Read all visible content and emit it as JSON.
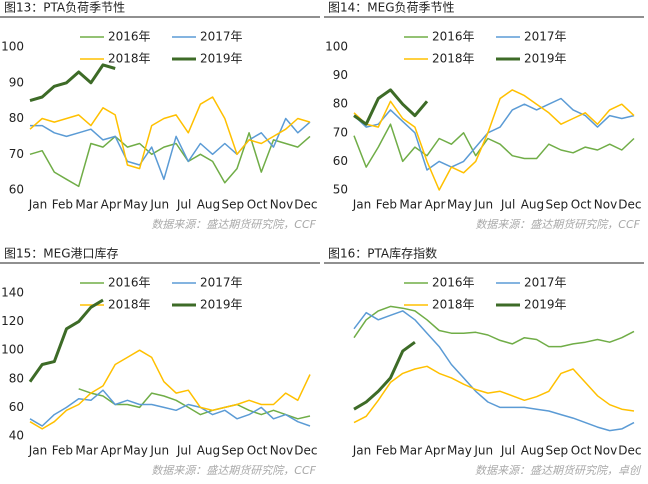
{
  "chart_data": [
    {
      "type": "line",
      "title": "图13：PTA负荷季节性",
      "source": "数据来源：盛达期货研究院，CCF",
      "categories": [
        "Jan",
        null,
        "Feb",
        null,
        "Mar",
        null,
        "Apr",
        null,
        "May",
        null,
        "Jun",
        null,
        "Jul",
        null,
        "Aug",
        null,
        "Sep",
        null,
        "Oct",
        null,
        "Nov",
        null,
        "Dec",
        null
      ],
      "ylim": [
        60,
        100
      ],
      "yticks": [
        60,
        70,
        80,
        90,
        100
      ],
      "series": [
        {
          "name": "2016年",
          "color": "#70ad47",
          "line_width": 1.5,
          "values": [
            70,
            71,
            65,
            63,
            61,
            73,
            72,
            75,
            72,
            73,
            70,
            72,
            73,
            68,
            70,
            68,
            62,
            66,
            76,
            65,
            74,
            73,
            72,
            75
          ]
        },
        {
          "name": "2017年",
          "color": "#5b9bd5",
          "line_width": 1.5,
          "values": [
            78,
            78,
            76,
            75,
            76,
            77,
            74,
            75,
            68,
            67,
            72,
            63,
            75,
            68,
            73,
            70,
            73,
            70,
            74,
            76,
            72,
            80,
            76,
            79
          ]
        },
        {
          "name": "2018年",
          "color": "#ffc000",
          "line_width": 1.5,
          "values": [
            77,
            80,
            79,
            80,
            81,
            78,
            83,
            81,
            67,
            66,
            78,
            80,
            81,
            76,
            84,
            86,
            80,
            70,
            74,
            73,
            75,
            77,
            80,
            79
          ]
        },
        {
          "name": "2019年",
          "color": "#3d6b27",
          "line_width": 3,
          "values": [
            85,
            86,
            89,
            90,
            93,
            90,
            95,
            94,
            null,
            null,
            null,
            null,
            null,
            null,
            null,
            null,
            null,
            null,
            null,
            null,
            null,
            null,
            null,
            null
          ]
        }
      ]
    },
    {
      "type": "line",
      "title": "图14：MEG负荷季节性",
      "source": "数据来源：盛达期货研究院，CCF",
      "categories": [
        "Jan",
        null,
        "Feb",
        null,
        "Mar",
        null,
        "Apr",
        null,
        "May",
        null,
        "Jun",
        null,
        "Jul",
        null,
        "Aug",
        null,
        "Sep",
        null,
        "Oct",
        null,
        "Nov",
        null,
        "Dec",
        null
      ],
      "ylim": [
        50,
        100
      ],
      "yticks": [
        50,
        60,
        70,
        80,
        90,
        100
      ],
      "series": [
        {
          "name": "2016年",
          "color": "#70ad47",
          "line_width": 1.5,
          "values": [
            69,
            58,
            65,
            73,
            60,
            65,
            62,
            68,
            66,
            70,
            62,
            68,
            66,
            62,
            61,
            61,
            66,
            64,
            63,
            65,
            64,
            66,
            64,
            68
          ]
        },
        {
          "name": "2017年",
          "color": "#5b9bd5",
          "line_width": 1.5,
          "values": [
            76,
            72,
            73,
            78,
            74,
            70,
            57,
            60,
            58,
            60,
            65,
            70,
            72,
            78,
            80,
            78,
            80,
            82,
            78,
            76,
            72,
            76,
            75,
            76
          ]
        },
        {
          "name": "2018年",
          "color": "#ffc000",
          "line_width": 1.5,
          "values": [
            77,
            73,
            72,
            81,
            75,
            72,
            60,
            50,
            58,
            56,
            60,
            70,
            82,
            85,
            83,
            80,
            77,
            73,
            75,
            77,
            73,
            78,
            80,
            76
          ]
        },
        {
          "name": "2019年",
          "color": "#3d6b27",
          "line_width": 3,
          "values": [
            76,
            73,
            82,
            85,
            80,
            76,
            81,
            null,
            null,
            null,
            null,
            null,
            null,
            null,
            null,
            null,
            null,
            null,
            null,
            null,
            null,
            null,
            null,
            null
          ]
        }
      ]
    },
    {
      "type": "line",
      "title": "图15：MEG港口库存",
      "source": "数据来源：盛达期货研究院，CCF",
      "categories": [
        "Jan",
        null,
        "Feb",
        null,
        "Mar",
        null,
        "Apr",
        null,
        "May",
        null,
        "Jun",
        null,
        "Jul",
        null,
        "Aug",
        null,
        "Sep",
        null,
        "Oct",
        null,
        "Nov",
        null,
        "Dec",
        null
      ],
      "ylim": [
        40,
        140
      ],
      "yticks": [
        40,
        60,
        80,
        100,
        120,
        140
      ],
      "series": [
        {
          "name": "2016年",
          "color": "#70ad47",
          "line_width": 1.5,
          "values": [
            null,
            null,
            null,
            null,
            73,
            70,
            68,
            62,
            62,
            60,
            70,
            68,
            65,
            60,
            55,
            58,
            60,
            62,
            58,
            55,
            58,
            55,
            52,
            54
          ]
        },
        {
          "name": "2017年",
          "color": "#5b9bd5",
          "line_width": 1.5,
          "values": [
            52,
            47,
            55,
            60,
            66,
            65,
            72,
            62,
            65,
            62,
            62,
            60,
            58,
            62,
            60,
            55,
            58,
            52,
            55,
            60,
            52,
            55,
            50,
            47
          ]
        },
        {
          "name": "2018年",
          "color": "#ffc000",
          "line_width": 1.5,
          "values": [
            50,
            45,
            50,
            58,
            62,
            70,
            75,
            90,
            95,
            100,
            95,
            78,
            70,
            72,
            60,
            58,
            60,
            62,
            65,
            62,
            62,
            70,
            65,
            83
          ]
        },
        {
          "name": "2019年",
          "color": "#3d6b27",
          "line_width": 3,
          "values": [
            78,
            90,
            92,
            115,
            120,
            130,
            135,
            null,
            null,
            null,
            null,
            null,
            null,
            null,
            null,
            null,
            null,
            null,
            null,
            null,
            null,
            null,
            null,
            null
          ]
        }
      ]
    },
    {
      "type": "line",
      "title": "图16：PTA库存指数",
      "source": "数据来源：盛达期货研究院，卓创",
      "categories": [
        "Jan",
        null,
        "Feb",
        null,
        "Mar",
        null,
        "Apr",
        null,
        "May",
        null,
        "Jun",
        null,
        "Jul",
        null,
        "Aug",
        null,
        "Sep",
        null,
        "Oct",
        null,
        "Nov",
        null,
        "Dec",
        null
      ],
      "ylim": [
        40,
        200
      ],
      "series": [
        {
          "name": "2016年",
          "color": "#70ad47",
          "line_width": 1.5,
          "values": [
            150,
            170,
            180,
            185,
            183,
            180,
            170,
            158,
            155,
            155,
            156,
            153,
            147,
            143,
            150,
            148,
            140,
            140,
            143,
            145,
            148,
            145,
            150,
            157
          ]
        },
        {
          "name": "2017年",
          "color": "#5b9bd5",
          "line_width": 1.5,
          "values": [
            160,
            178,
            170,
            175,
            180,
            170,
            155,
            140,
            120,
            105,
            90,
            78,
            72,
            72,
            72,
            70,
            68,
            64,
            60,
            55,
            50,
            46,
            48,
            55
          ]
        },
        {
          "name": "2018年",
          "color": "#ffc000",
          "line_width": 1.5,
          "values": [
            55,
            62,
            80,
            100,
            110,
            115,
            118,
            110,
            105,
            98,
            92,
            88,
            90,
            85,
            80,
            84,
            90,
            110,
            115,
            100,
            85,
            75,
            70,
            68
          ]
        },
        {
          "name": "2019年",
          "color": "#3d6b27",
          "line_width": 3,
          "values": [
            70,
            78,
            90,
            105,
            135,
            145,
            null,
            null,
            null,
            null,
            null,
            null,
            null,
            null,
            null,
            null,
            null,
            null,
            null,
            null,
            null,
            null,
            null,
            null
          ]
        }
      ]
    }
  ]
}
